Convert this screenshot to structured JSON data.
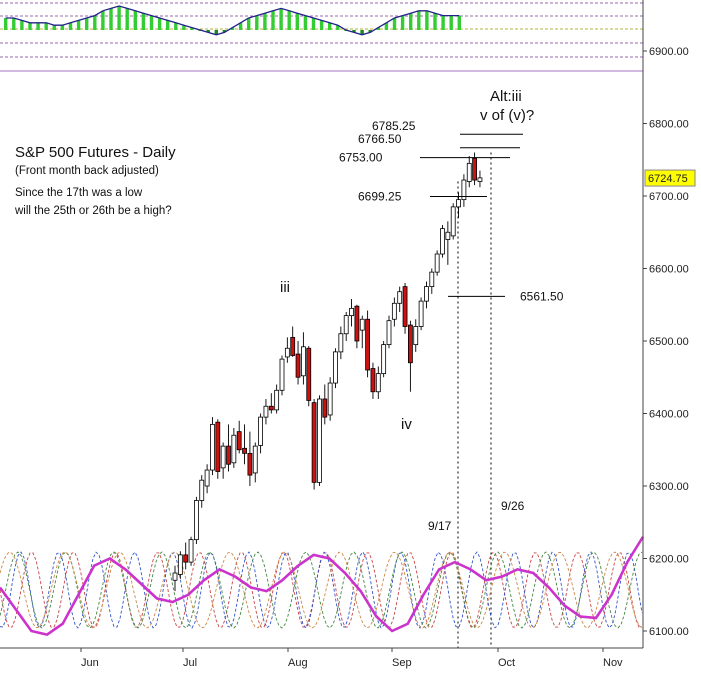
{
  "chart_data": {
    "type": "candlestick",
    "title": "S&P 500 Futures - Daily",
    "subtitle": "(Front month back adjusted)",
    "question_line1": "Since the 17th was a low",
    "question_line2": "will the 25th or 26th be a high?",
    "ylim": [
      6075,
      6975
    ],
    "yticks": [
      "6100.00",
      "6200.00",
      "6300.00",
      "6400.00",
      "6500.00",
      "6600.00",
      "6700.00",
      "6800.00",
      "6900.00"
    ],
    "ytick_values": [
      6100,
      6200,
      6300,
      6400,
      6500,
      6600,
      6700,
      6800,
      6900
    ],
    "x_month_labels": [
      "Jun",
      "Jul",
      "Aug",
      "Sep",
      "Oct",
      "Nov"
    ],
    "last_price_label": "6724.75",
    "last_price": 6724.75,
    "levels": [
      {
        "label": "6785.25",
        "value": 6785.25
      },
      {
        "label": "6766.50",
        "value": 6766.5
      },
      {
        "label": "6753.00",
        "value": 6753
      },
      {
        "label": "6699.25",
        "value": 6699.25
      },
      {
        "label": "6561.50",
        "value": 6561.5
      }
    ],
    "wave_labels": {
      "iii": "iii",
      "iv": "iv",
      "alt1": "Alt:iii",
      "alt2": "v of (v)?"
    },
    "date_labels": {
      "low": "9/17",
      "high": "9/26"
    },
    "candles": [
      {
        "o": 6170,
        "h": 6190,
        "l": 6155,
        "c": 6180,
        "up": true
      },
      {
        "o": 6178,
        "h": 6210,
        "l": 6172,
        "c": 6205,
        "up": true
      },
      {
        "o": 6205,
        "h": 6222,
        "l": 6185,
        "c": 6195,
        "up": false
      },
      {
        "o": 6195,
        "h": 6230,
        "l": 6190,
        "c": 6226,
        "up": true
      },
      {
        "o": 6226,
        "h": 6285,
        "l": 6220,
        "c": 6280,
        "up": true
      },
      {
        "o": 6280,
        "h": 6315,
        "l": 6270,
        "c": 6308,
        "up": true
      },
      {
        "o": 6300,
        "h": 6330,
        "l": 6290,
        "c": 6322,
        "up": true
      },
      {
        "o": 6322,
        "h": 6395,
        "l": 6315,
        "c": 6385,
        "up": true
      },
      {
        "o": 6388,
        "h": 6392,
        "l": 6310,
        "c": 6320,
        "up": false
      },
      {
        "o": 6325,
        "h": 6360,
        "l": 6310,
        "c": 6355,
        "up": true
      },
      {
        "o": 6355,
        "h": 6385,
        "l": 6320,
        "c": 6330,
        "up": false
      },
      {
        "o": 6332,
        "h": 6380,
        "l": 6325,
        "c": 6370,
        "up": true
      },
      {
        "o": 6375,
        "h": 6390,
        "l": 6345,
        "c": 6350,
        "up": false
      },
      {
        "o": 6352,
        "h": 6385,
        "l": 6330,
        "c": 6345,
        "up": false
      },
      {
        "o": 6345,
        "h": 6375,
        "l": 6300,
        "c": 6315,
        "up": false
      },
      {
        "o": 6318,
        "h": 6360,
        "l": 6305,
        "c": 6355,
        "up": true
      },
      {
        "o": 6356,
        "h": 6400,
        "l": 6345,
        "c": 6395,
        "up": true
      },
      {
        "o": 6395,
        "h": 6420,
        "l": 6385,
        "c": 6410,
        "up": true
      },
      {
        "o": 6410,
        "h": 6428,
        "l": 6400,
        "c": 6405,
        "up": false
      },
      {
        "o": 6405,
        "h": 6440,
        "l": 6400,
        "c": 6432,
        "up": true
      },
      {
        "o": 6432,
        "h": 6480,
        "l": 6425,
        "c": 6475,
        "up": true
      },
      {
        "o": 6478,
        "h": 6505,
        "l": 6470,
        "c": 6490,
        "up": true
      },
      {
        "o": 6505,
        "h": 6520,
        "l": 6478,
        "c": 6480,
        "up": false
      },
      {
        "o": 6482,
        "h": 6500,
        "l": 6440,
        "c": 6450,
        "up": false
      },
      {
        "o": 6452,
        "h": 6512,
        "l": 6440,
        "c": 6492,
        "up": true
      },
      {
        "o": 6490,
        "h": 6493,
        "l": 6410,
        "c": 6418,
        "up": false
      },
      {
        "o": 6415,
        "h": 6420,
        "l": 6295,
        "c": 6305,
        "up": false
      },
      {
        "o": 6305,
        "h": 6425,
        "l": 6300,
        "c": 6420,
        "up": true
      },
      {
        "o": 6420,
        "h": 6440,
        "l": 6385,
        "c": 6395,
        "up": false
      },
      {
        "o": 6398,
        "h": 6450,
        "l": 6390,
        "c": 6442,
        "up": true
      },
      {
        "o": 6442,
        "h": 6490,
        "l": 6435,
        "c": 6485,
        "up": true
      },
      {
        "o": 6485,
        "h": 6520,
        "l": 6475,
        "c": 6510,
        "up": true
      },
      {
        "o": 6510,
        "h": 6540,
        "l": 6500,
        "c": 6535,
        "up": true
      },
      {
        "o": 6535,
        "h": 6558,
        "l": 6520,
        "c": 6545,
        "up": true
      },
      {
        "o": 6548,
        "h": 6550,
        "l": 6490,
        "c": 6500,
        "up": false
      },
      {
        "o": 6515,
        "h": 6535,
        "l": 6490,
        "c": 6530,
        "up": true
      },
      {
        "o": 6530,
        "h": 6542,
        "l": 6450,
        "c": 6460,
        "up": false
      },
      {
        "o": 6462,
        "h": 6470,
        "l": 6420,
        "c": 6430,
        "up": false
      },
      {
        "o": 6430,
        "h": 6465,
        "l": 6420,
        "c": 6455,
        "up": true
      },
      {
        "o": 6455,
        "h": 6500,
        "l": 6450,
        "c": 6495,
        "up": true
      },
      {
        "o": 6495,
        "h": 6535,
        "l": 6490,
        "c": 6528,
        "up": true
      },
      {
        "o": 6530,
        "h": 6560,
        "l": 6520,
        "c": 6552,
        "up": true
      },
      {
        "o": 6552,
        "h": 6575,
        "l": 6540,
        "c": 6568,
        "up": true
      },
      {
        "o": 6575,
        "h": 6580,
        "l": 6510,
        "c": 6520,
        "up": false
      },
      {
        "o": 6522,
        "h": 6528,
        "l": 6430,
        "c": 6470,
        "up": false
      },
      {
        "o": 6495,
        "h": 6530,
        "l": 6485,
        "c": 6520,
        "up": true
      },
      {
        "o": 6520,
        "h": 6560,
        "l": 6515,
        "c": 6555,
        "up": true
      },
      {
        "o": 6555,
        "h": 6582,
        "l": 6545,
        "c": 6575,
        "up": true
      },
      {
        "o": 6575,
        "h": 6600,
        "l": 6565,
        "c": 6595,
        "up": true
      },
      {
        "o": 6595,
        "h": 6625,
        "l": 6590,
        "c": 6620,
        "up": true
      },
      {
        "o": 6620,
        "h": 6660,
        "l": 6615,
        "c": 6655,
        "up": true
      },
      {
        "o": 6650,
        "h": 6665,
        "l": 6605,
        "c": 6640,
        "up": true
      },
      {
        "o": 6645,
        "h": 6690,
        "l": 6640,
        "c": 6685,
        "up": true
      },
      {
        "o": 6685,
        "h": 6705,
        "l": 6670,
        "c": 6695,
        "up": true
      },
      {
        "o": 6695,
        "h": 6730,
        "l": 6685,
        "c": 6722,
        "up": true
      },
      {
        "o": 6720,
        "h": 6755,
        "l": 6712,
        "c": 6745,
        "up": true
      },
      {
        "o": 6752,
        "h": 6760,
        "l": 6715,
        "c": 6722,
        "up": false
      },
      {
        "o": 6720,
        "h": 6735,
        "l": 6712,
        "c": 6725,
        "up": true
      }
    ],
    "oscillator_upper": {
      "type": "histogram",
      "bars": [
        5,
        5,
        4,
        3,
        3,
        3,
        2,
        2,
        3,
        4,
        5,
        6,
        8,
        9,
        10,
        9,
        8,
        7,
        6,
        5,
        4,
        3,
        2,
        1,
        0,
        -1,
        -2,
        -1,
        1,
        3,
        5,
        6,
        7,
        8,
        9,
        8,
        7,
        6,
        5,
        4,
        3,
        2,
        0,
        -1,
        -2,
        -1,
        1,
        3,
        5,
        6,
        7,
        8,
        8,
        7,
        6,
        6,
        6
      ],
      "color_up": "#33cc33",
      "color_down": "#1a8a1a"
    },
    "cycle_series": [
      {
        "name": "",
        "color": "#cc33cc",
        "values": [
          6160,
          6130,
          6100,
          6095,
          6110,
          6150,
          6190,
          6200,
          6185,
          6165,
          6145,
          6140,
          6150,
          6170,
          6185,
          6175,
          6160,
          6155,
          6170,
          6190,
          6205,
          6200,
          6180,
          6155,
          6120,
          6100,
          6110,
          6150,
          6185,
          6195,
          6185,
          6170,
          6175,
          6185,
          6180,
          6160,
          6135,
          6120,
          6118,
          6150,
          6195,
          6230
        ]
      }
    ]
  }
}
